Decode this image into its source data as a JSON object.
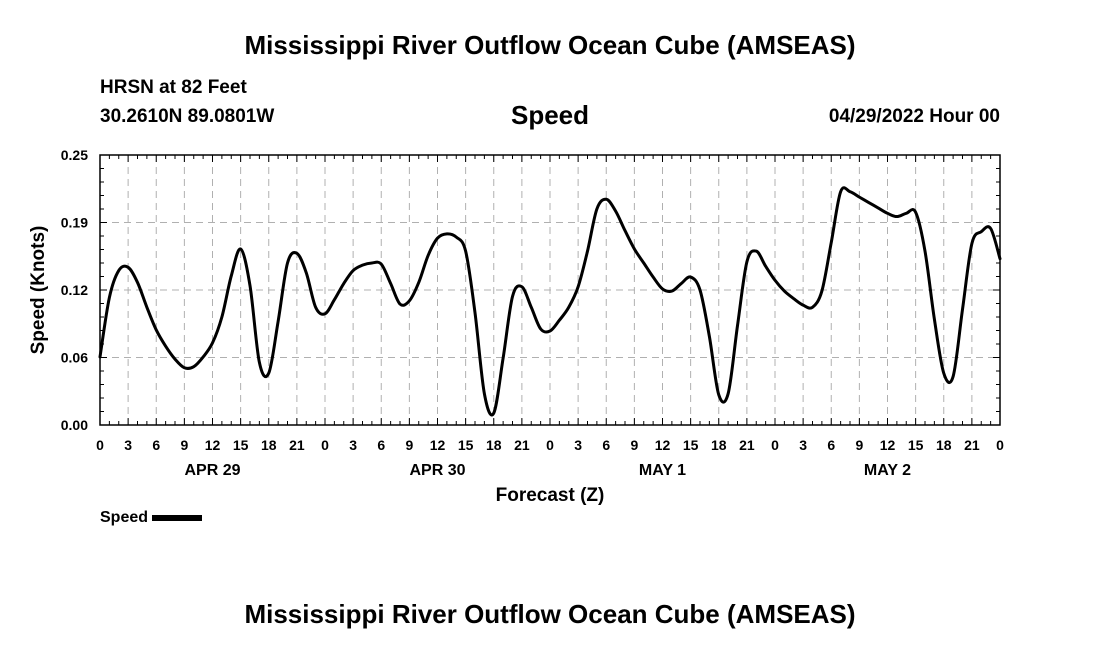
{
  "header": {
    "title": "Mississippi River Outflow Ocean Cube (AMSEAS)",
    "station": "HRSN at 82 Feet",
    "coords": "30.2610N  89.0801W",
    "variable": "Speed",
    "datetime": "04/29/2022 Hour 00"
  },
  "footer": {
    "title": "Mississippi River Outflow Ocean Cube (AMSEAS)"
  },
  "legend": {
    "label": "Speed"
  },
  "colors": {
    "line": "#000000",
    "grid": "#b0b0b0"
  },
  "chart_data": {
    "type": "line",
    "xlabel": "Forecast (Z)",
    "ylabel": "Speed (Knots)",
    "ylim": [
      0,
      0.25
    ],
    "yticks": [
      "0.00",
      "0.06",
      "0.12",
      "0.19",
      "0.25"
    ],
    "xlim": [
      0,
      96
    ],
    "xtick_labels": [
      "0",
      "3",
      "6",
      "9",
      "12",
      "15",
      "18",
      "21",
      "0",
      "3",
      "6",
      "9",
      "12",
      "15",
      "18",
      "21",
      "0",
      "3",
      "6",
      "9",
      "12",
      "15",
      "18",
      "21",
      "0",
      "3",
      "6",
      "9",
      "12",
      "15",
      "18",
      "21",
      "0"
    ],
    "day_labels": [
      "APR 29",
      "APR 30",
      "MAY 1",
      "MAY 2"
    ],
    "grid": true,
    "legend_position": "bottom-left",
    "series": [
      {
        "name": "Speed",
        "x": [
          0,
          1,
          2,
          3,
          4,
          5,
          6,
          7,
          8,
          9,
          10,
          11,
          12,
          13,
          14,
          15,
          16,
          17,
          18,
          19,
          20,
          21,
          22,
          23,
          24,
          25,
          26,
          27,
          28,
          29,
          30,
          31,
          32,
          33,
          34,
          35,
          36,
          37,
          38,
          39,
          40,
          41,
          42,
          43,
          44,
          45,
          46,
          47,
          48,
          49,
          50,
          51,
          52,
          53,
          54,
          55,
          56,
          57,
          58,
          59,
          60,
          61,
          62,
          63,
          64,
          65,
          66,
          67,
          68,
          69,
          70,
          71,
          72,
          73,
          74,
          75,
          76,
          77,
          78,
          79,
          80,
          81,
          82,
          83,
          84,
          85,
          86,
          87,
          88,
          89,
          90,
          91,
          92,
          93,
          94,
          95,
          96
        ],
        "y": [
          0.063,
          0.118,
          0.143,
          0.146,
          0.132,
          0.109,
          0.088,
          0.073,
          0.061,
          0.053,
          0.054,
          0.063,
          0.076,
          0.1,
          0.138,
          0.163,
          0.129,
          0.058,
          0.048,
          0.096,
          0.15,
          0.159,
          0.141,
          0.109,
          0.103,
          0.116,
          0.131,
          0.143,
          0.148,
          0.15,
          0.149,
          0.131,
          0.112,
          0.115,
          0.132,
          0.157,
          0.173,
          0.177,
          0.174,
          0.161,
          0.104,
          0.029,
          0.011,
          0.062,
          0.119,
          0.128,
          0.109,
          0.089,
          0.087,
          0.097,
          0.109,
          0.128,
          0.161,
          0.2,
          0.209,
          0.198,
          0.18,
          0.163,
          0.15,
          0.137,
          0.126,
          0.124,
          0.131,
          0.137,
          0.125,
          0.082,
          0.028,
          0.029,
          0.092,
          0.151,
          0.161,
          0.147,
          0.134,
          0.124,
          0.117,
          0.111,
          0.109,
          0.124,
          0.169,
          0.216,
          0.216,
          0.211,
          0.206,
          0.201,
          0.196,
          0.193,
          0.196,
          0.197,
          0.161,
          0.098,
          0.048,
          0.045,
          0.107,
          0.168,
          0.179,
          0.182,
          0.154
        ]
      }
    ]
  }
}
